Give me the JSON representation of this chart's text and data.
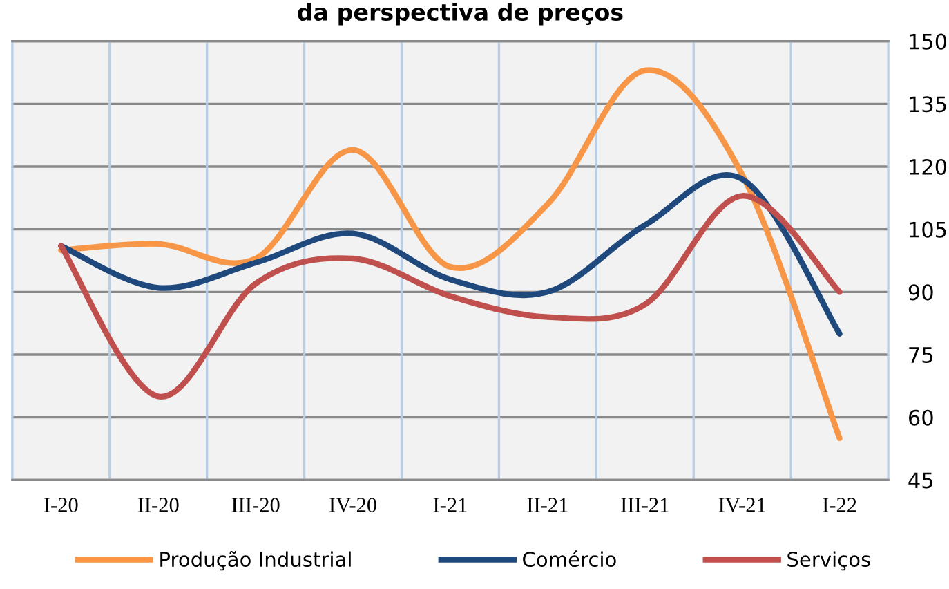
{
  "chart_data": {
    "type": "line",
    "title": "da perspectiva de preços",
    "categories": [
      "I-20",
      "II-20",
      "III-20",
      "IV-20",
      "I-21",
      "II-21",
      "III-21",
      "IV-21",
      "I-22"
    ],
    "series": [
      {
        "name": "Produção Industrial",
        "color": "#f79646",
        "values": [
          100,
          101.5,
          98,
          124,
          96,
          111,
          143,
          118,
          55
        ]
      },
      {
        "name": "Comércio",
        "color": "#1f497d",
        "values": [
          101,
          91,
          97,
          104,
          93,
          90,
          106,
          117,
          80
        ]
      },
      {
        "name": "Serviços",
        "color": "#c0504d",
        "values": [
          101,
          65,
          92,
          98,
          89,
          84,
          87,
          113,
          90
        ]
      }
    ],
    "ylim": [
      45,
      150
    ],
    "yticks": [
      45,
      60,
      75,
      90,
      105,
      120,
      135,
      150
    ],
    "grid": true,
    "legend": "bottom"
  }
}
